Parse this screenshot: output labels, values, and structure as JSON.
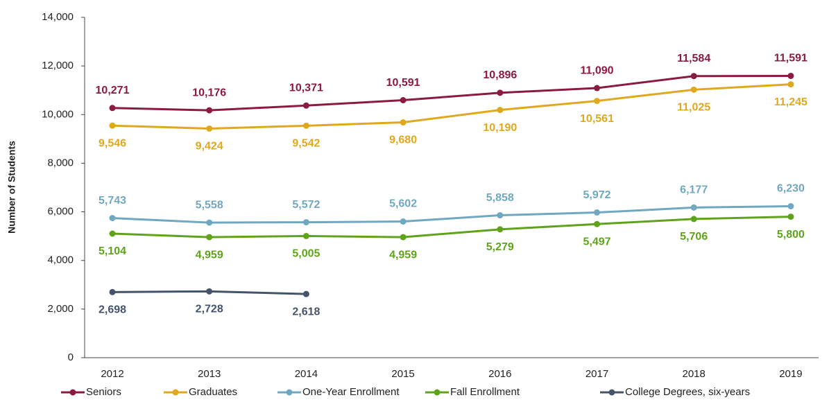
{
  "chart_data": {
    "type": "line",
    "y_label": "Number of Students",
    "categories": [
      "2012",
      "2013",
      "2014",
      "2015",
      "2016",
      "2017",
      "2018",
      "2019"
    ],
    "series": [
      {
        "name": "Seniors",
        "color": "#8b1a3f",
        "values": [
          10271,
          10176,
          10371,
          10591,
          10896,
          11090,
          11584,
          11591
        ],
        "value_labels": [
          "10,271",
          "10,176",
          "10,371",
          "10,591",
          "10,896",
          "11,090",
          "11,584",
          "11,591"
        ]
      },
      {
        "name": "Graduates",
        "color": "#e0a81c",
        "values": [
          9546,
          9424,
          9542,
          9680,
          10190,
          10561,
          11025,
          11245
        ],
        "value_labels": [
          "9,546",
          "9,424",
          "9,542",
          "9,680",
          "10,190",
          "10,561",
          "11,025",
          "11,245"
        ]
      },
      {
        "name": "One-Year Enrollment",
        "color": "#6fa8c0",
        "values": [
          5743,
          5558,
          5572,
          5602,
          5858,
          5972,
          6177,
          6230
        ],
        "value_labels": [
          "5,743",
          "5,558",
          "5,572",
          "5,602",
          "5,858",
          "5,972",
          "6,177",
          "6,230"
        ]
      },
      {
        "name": "Fall Enrollment",
        "color": "#5ea31a",
        "values": [
          5104,
          4959,
          5005,
          4959,
          5279,
          5497,
          5706,
          5800
        ],
        "value_labels": [
          "5,104",
          "4,959",
          "5,005",
          "4,959",
          "5,279",
          "5,497",
          "5,706",
          "5,800"
        ]
      },
      {
        "name": "College Degrees, six-years",
        "color": "#44546a",
        "values": [
          2698,
          2728,
          2618,
          null,
          null,
          null,
          null,
          null
        ],
        "value_labels": [
          "2,698",
          "2,728",
          "2,618",
          null,
          null,
          null,
          null,
          null
        ]
      }
    ],
    "ylim": [
      0,
      14000
    ],
    "yticks": [
      0,
      {
        "value": 2000,
        "label": "2,000"
      },
      {
        "value": 4000,
        "label": "4,000"
      },
      {
        "value": 6000,
        "label": "6,000"
      },
      {
        "value": 8000,
        "label": "8,000"
      },
      {
        "value": 10000,
        "label": "10,000"
      },
      {
        "value": 12000,
        "label": "12,000"
      },
      {
        "value": 14000,
        "label": "14,000"
      }
    ],
    "legend": "bottom"
  }
}
